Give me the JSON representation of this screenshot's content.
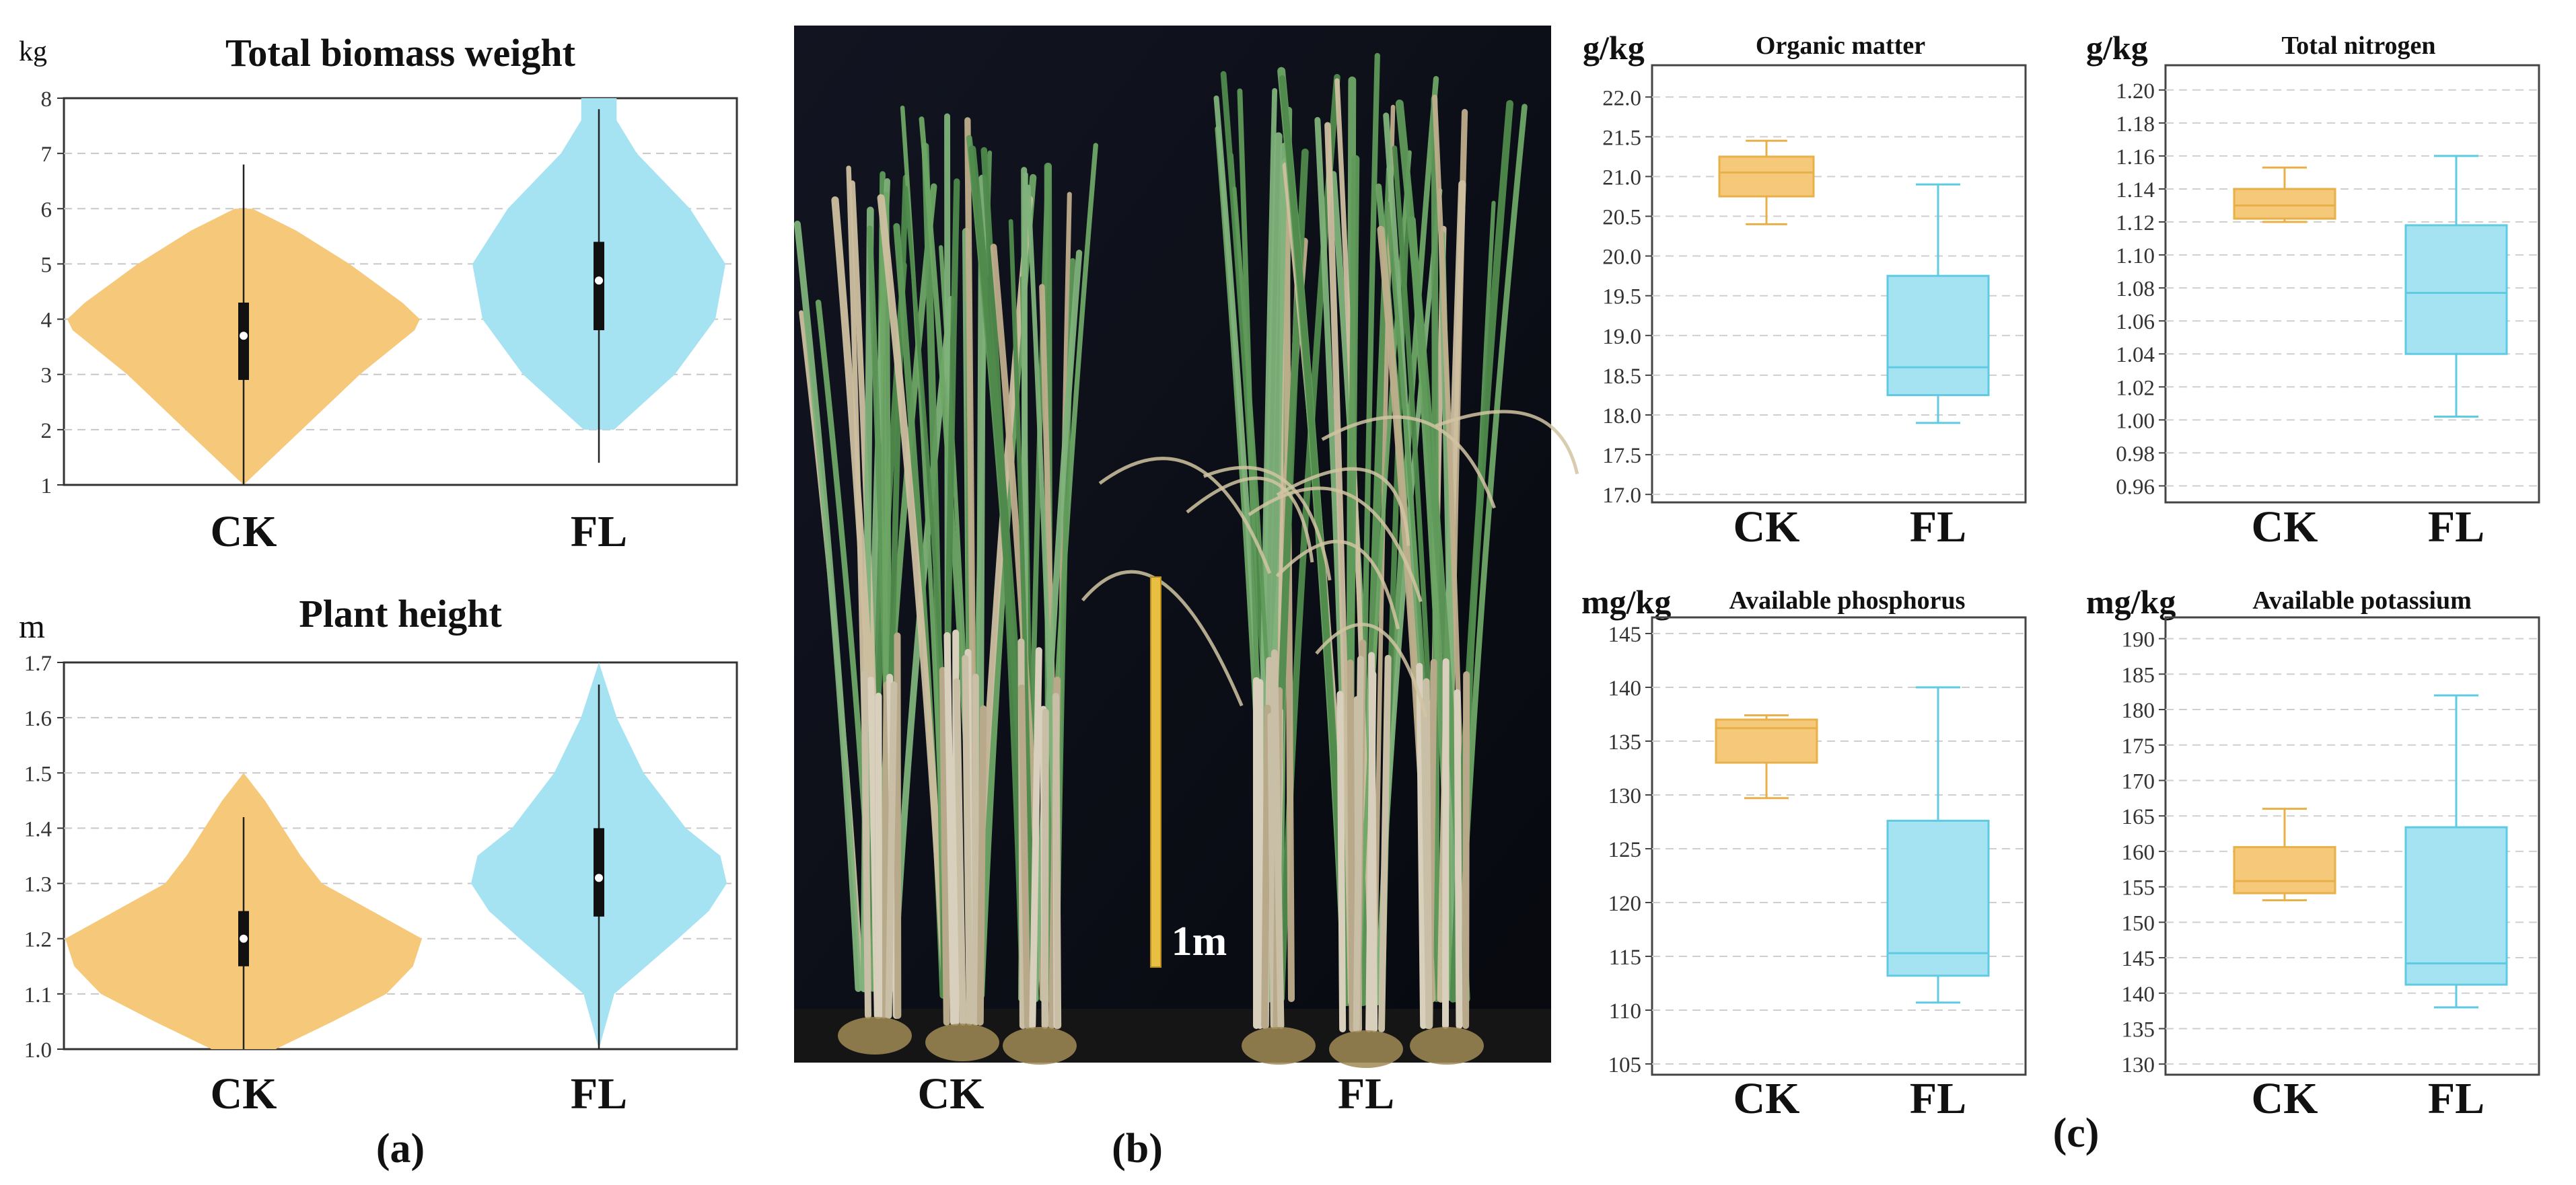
{
  "panel_labels": {
    "a": "(a)",
    "b": "(b)",
    "c": "(c)"
  },
  "photo": {
    "scale_label": "1m",
    "group_labels": [
      "CK",
      "FL"
    ]
  },
  "colors": {
    "ck": "#f6c87a",
    "ck_line": "#e8b048",
    "fl": "#a6e3f2",
    "fl_line": "#5ecbe2"
  },
  "chart_data": [
    {
      "type": "violin",
      "title": "Total biomass weight",
      "unit": "kg",
      "categories": [
        "CK",
        "FL"
      ],
      "yticks": [
        1,
        2,
        3,
        4,
        5,
        6,
        7,
        8
      ],
      "ylim": [
        1,
        8
      ],
      "grid": true,
      "series": [
        {
          "group": "CK",
          "min": 1.0,
          "max": 6.8,
          "q1": 2.9,
          "median": 3.7,
          "q3": 4.3,
          "violin": [
            [
              1.0,
              0.0
            ],
            [
              2.0,
              0.33
            ],
            [
              3.0,
              0.66
            ],
            [
              3.8,
              0.97
            ],
            [
              4.0,
              1.0
            ],
            [
              4.3,
              0.9
            ],
            [
              5.0,
              0.6
            ],
            [
              5.6,
              0.3
            ],
            [
              6.0,
              0.05
            ]
          ]
        },
        {
          "group": "FL",
          "min": 1.4,
          "max": 7.8,
          "q1": 3.8,
          "median": 4.7,
          "q3": 5.4,
          "violin": [
            [
              2.0,
              0.12
            ],
            [
              3.0,
              0.6
            ],
            [
              4.0,
              0.92
            ],
            [
              5.0,
              1.0
            ],
            [
              6.0,
              0.72
            ],
            [
              7.0,
              0.3
            ],
            [
              7.6,
              0.14
            ],
            [
              8.0,
              0.14
            ]
          ]
        }
      ]
    },
    {
      "type": "violin",
      "title": "Plant height",
      "unit": "m",
      "categories": [
        "CK",
        "FL"
      ],
      "yticks": [
        1.0,
        1.1,
        1.2,
        1.3,
        1.4,
        1.5,
        1.6,
        1.7
      ],
      "ylim": [
        1.0,
        1.7
      ],
      "grid": true,
      "series": [
        {
          "group": "CK",
          "min": 1.0,
          "max": 1.42,
          "q1": 1.15,
          "median": 1.2,
          "q3": 1.25,
          "violin": [
            [
              1.0,
              0.18
            ],
            [
              1.05,
              0.5
            ],
            [
              1.1,
              0.8
            ],
            [
              1.15,
              0.95
            ],
            [
              1.2,
              1.0
            ],
            [
              1.25,
              0.72
            ],
            [
              1.3,
              0.44
            ],
            [
              1.35,
              0.32
            ],
            [
              1.4,
              0.22
            ],
            [
              1.45,
              0.12
            ],
            [
              1.5,
              0.0
            ]
          ]
        },
        {
          "group": "FL",
          "min": 1.0,
          "max": 1.66,
          "q1": 1.24,
          "median": 1.31,
          "q3": 1.4,
          "violin": [
            [
              1.0,
              0.0
            ],
            [
              1.1,
              0.12
            ],
            [
              1.2,
              0.62
            ],
            [
              1.25,
              0.86
            ],
            [
              1.3,
              1.0
            ],
            [
              1.35,
              0.95
            ],
            [
              1.4,
              0.68
            ],
            [
              1.5,
              0.35
            ],
            [
              1.6,
              0.14
            ],
            [
              1.7,
              0.0
            ]
          ]
        }
      ]
    },
    {
      "type": "box",
      "title": "Organic matter",
      "unit": "g/kg",
      "categories": [
        "CK",
        "FL"
      ],
      "yticks": [
        "17.0",
        "17.5",
        "18.0",
        "18.5",
        "19.0",
        "19.5",
        "20.0",
        "20.5",
        "21.0",
        "21.5",
        "22.0"
      ],
      "ylim": [
        16.9,
        22.4
      ],
      "grid": true,
      "series": [
        {
          "group": "CK",
          "min": 20.4,
          "q1": 20.75,
          "median": 21.05,
          "q3": 21.25,
          "max": 21.45
        },
        {
          "group": "FL",
          "min": 17.9,
          "q1": 18.25,
          "median": 18.6,
          "q3": 19.75,
          "max": 20.9
        }
      ]
    },
    {
      "type": "box",
      "title": "Total nitrogen",
      "unit": "g/kg",
      "categories": [
        "CK",
        "FL"
      ],
      "yticks": [
        "0.96",
        "0.98",
        "1.00",
        "1.02",
        "1.04",
        "1.06",
        "1.08",
        "1.10",
        "1.12",
        "1.14",
        "1.16",
        "1.18",
        "1.20"
      ],
      "ylim": [
        0.95,
        1.215
      ],
      "grid": true,
      "series": [
        {
          "group": "CK",
          "min": 1.12,
          "q1": 1.122,
          "median": 1.13,
          "q3": 1.14,
          "max": 1.153
        },
        {
          "group": "FL",
          "min": 1.002,
          "q1": 1.04,
          "median": 1.077,
          "q3": 1.118,
          "max": 1.16
        }
      ]
    },
    {
      "type": "box",
      "title": "Available phosphorus",
      "unit": "mg/kg",
      "categories": [
        "CK",
        "FL"
      ],
      "yticks": [
        "105",
        "110",
        "115",
        "120",
        "125",
        "130",
        "135",
        "140",
        "145"
      ],
      "ylim": [
        104,
        146.5
      ],
      "grid": true,
      "series": [
        {
          "group": "CK",
          "min": 129.7,
          "q1": 133.0,
          "median": 136.2,
          "q3": 137.0,
          "max": 137.4
        },
        {
          "group": "FL",
          "min": 110.7,
          "q1": 113.2,
          "median": 115.3,
          "q3": 127.6,
          "max": 140.0
        }
      ]
    },
    {
      "type": "box",
      "title": "Available potassium",
      "unit": "mg/kg",
      "categories": [
        "CK",
        "FL"
      ],
      "yticks": [
        "130",
        "135",
        "140",
        "145",
        "150",
        "155",
        "160",
        "165",
        "170",
        "175",
        "180",
        "185",
        "190"
      ],
      "ylim": [
        128.5,
        193
      ],
      "grid": true,
      "series": [
        {
          "group": "CK",
          "min": 153.1,
          "q1": 154.1,
          "median": 155.8,
          "q3": 160.6,
          "max": 166.0
        },
        {
          "group": "FL",
          "min": 138.0,
          "q1": 141.2,
          "median": 144.2,
          "q3": 163.4,
          "max": 182.0
        }
      ]
    }
  ]
}
